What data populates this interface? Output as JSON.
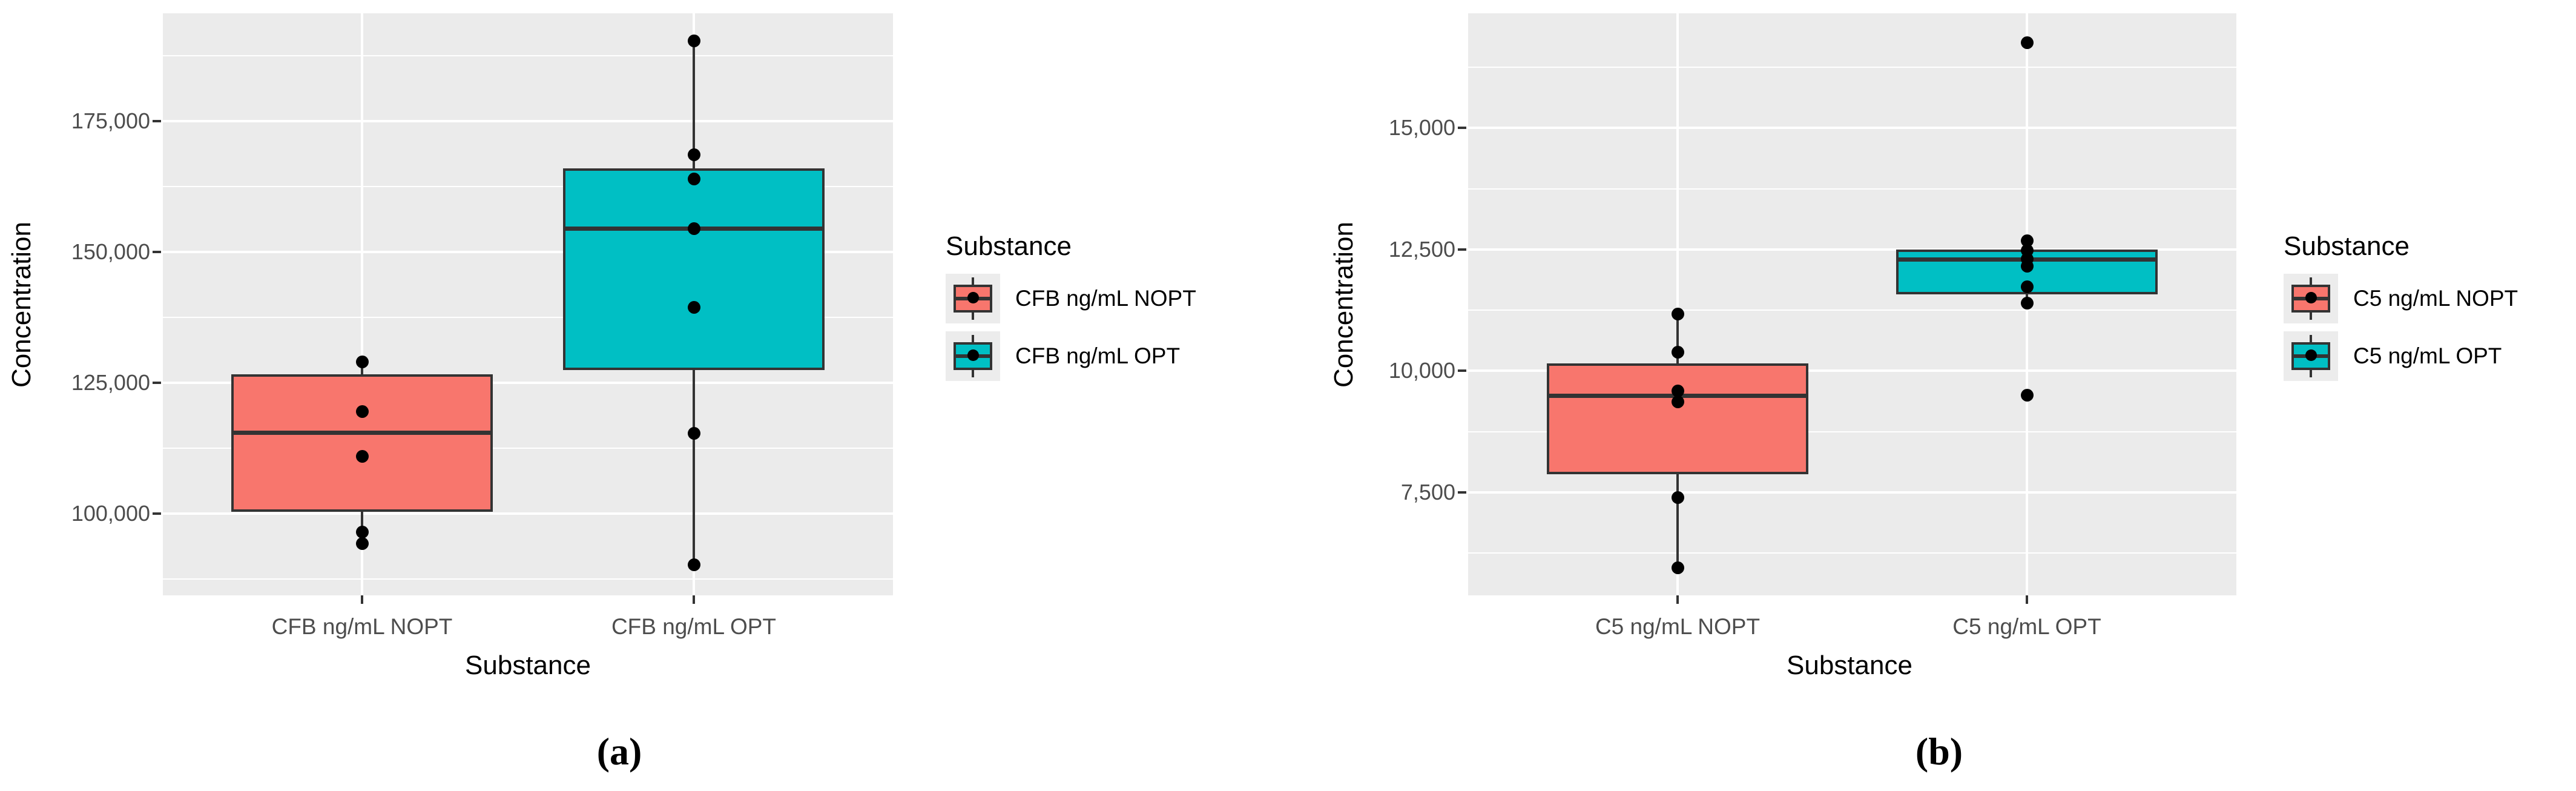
{
  "colors": {
    "nopt_fill": "#F8766D",
    "opt_fill": "#00BFC4",
    "panel_background": "#EBEBEB",
    "gridline": "#FFFFFF",
    "box_stroke": "#333333",
    "point": "#000000",
    "tick_label": "#4D4D4D",
    "legend_key_background": "#ECECEC"
  },
  "chart_data": [
    {
      "type": "boxplot",
      "caption": "(a)",
      "xlabel": "Substance",
      "ylabel": "Concentration",
      "categories": [
        "CFB ng/mL NOPT",
        "CFB ng/mL OPT"
      ],
      "legend": {
        "title": "Substance",
        "entries": [
          "CFB ng/mL NOPT",
          "CFB ng/mL OPT"
        ]
      },
      "legend_position": "right",
      "grid": true,
      "y_ticks": [
        100000,
        125000,
        150000,
        175000
      ],
      "y_tick_labels": [
        "100,000",
        "125,000",
        "150,000",
        "175,000"
      ],
      "ylim": [
        84400,
        195600
      ],
      "series": [
        {
          "name": "CFB ng/mL NOPT",
          "color": "#F8766D",
          "q1": 100400,
          "median": 115500,
          "q3": 126600,
          "whisker_low": 94300,
          "whisker_high": 129000,
          "points": [
            129000,
            119500,
            111000,
            96500,
            94300
          ]
        },
        {
          "name": "CFB ng/mL OPT",
          "color": "#00BFC4",
          "q1": 127500,
          "median": 154500,
          "q3": 166000,
          "whisker_low": 90200,
          "whisker_high": 190300,
          "points": [
            190300,
            168600,
            164000,
            154500,
            139400,
            115400,
            90200
          ]
        }
      ]
    },
    {
      "type": "boxplot",
      "caption": "(b)",
      "xlabel": "Substance",
      "ylabel": "Concentration",
      "categories": [
        "C5 ng/mL NOPT",
        "C5 ng/mL OPT"
      ],
      "legend": {
        "title": "Substance",
        "entries": [
          "C5 ng/mL NOPT",
          "C5 ng/mL OPT"
        ]
      },
      "legend_position": "right",
      "grid": true,
      "y_ticks": [
        7500,
        10000,
        12500,
        15000
      ],
      "y_tick_labels": [
        "7,500",
        "10,000",
        "12,500",
        "15,000"
      ],
      "ylim": [
        5380,
        17360
      ],
      "series": [
        {
          "name": "C5 ng/mL NOPT",
          "color": "#F8766D",
          "q1": 7875,
          "median": 9490,
          "q3": 10160,
          "whisker_low": 5950,
          "whisker_high": 11170,
          "points": [
            11170,
            10390,
            9590,
            9365,
            7390,
            5950
          ]
        },
        {
          "name": "C5 ng/mL OPT",
          "color": "#00BFC4",
          "q1": 11580,
          "median": 12290,
          "q3": 12500,
          "whisker_low": 11400,
          "whisker_high": 12680,
          "points": [
            16750,
            12680,
            12480,
            12300,
            12160,
            11730,
            11400,
            9500
          ]
        }
      ]
    }
  ]
}
